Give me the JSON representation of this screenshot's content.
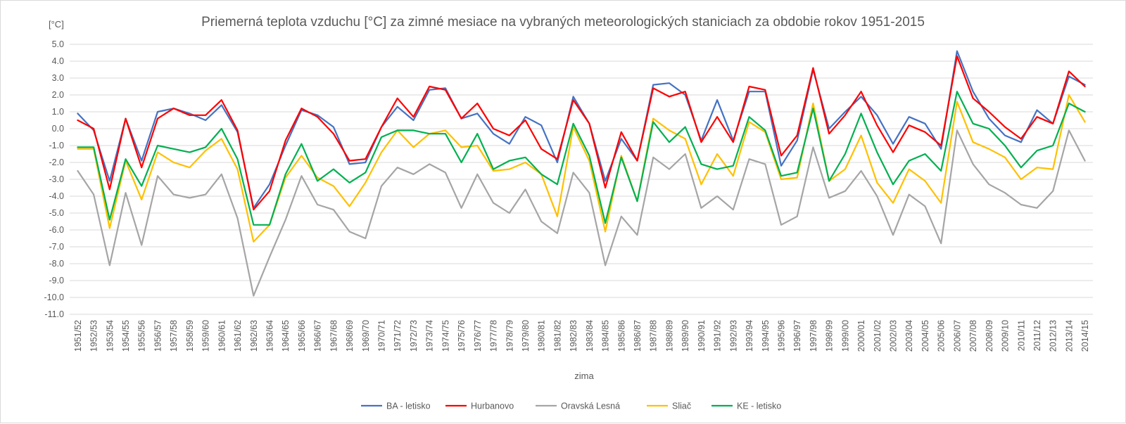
{
  "chart_data": {
    "type": "line",
    "title": "Priemerná teplota vzduchu [°C] za zimné mesiace na vybraných meteorologických staniciach za obdobie rokov 1951-2015",
    "ylabel": "[°C]",
    "xlabel": "zima",
    "ylim": [
      -11,
      5
    ],
    "ytick_step": 1,
    "ytick_labels": [
      "5.0",
      "4.0",
      "3.0",
      "2.0",
      "1.0",
      "0.0",
      "-1.0",
      "-2.0",
      "-3.0",
      "-4.0",
      "-5.0",
      "-6.0",
      "-7.0",
      "-8.0",
      "-9.0",
      "-10.0",
      "-11.0"
    ],
    "grid": true,
    "legend_position": "bottom",
    "categories": [
      "1951/52",
      "1952/53",
      "1953/54",
      "1954/55",
      "1955/56",
      "1956/57",
      "1957/58",
      "1958/59",
      "1959/60",
      "1960/61",
      "1961/62",
      "1962/63",
      "1963/64",
      "1964/65",
      "1965/66",
      "1966/67",
      "1967/68",
      "1968/69",
      "1969/70",
      "1970/71",
      "1971/72",
      "1972/73",
      "1973/74",
      "1974/75",
      "1975/76",
      "1976/77",
      "1977/78",
      "1978/79",
      "1979/80",
      "1980/81",
      "1981/82",
      "1982/83",
      "1983/84",
      "1984/85",
      "1985/86",
      "1986/87",
      "1987/88",
      "1988/89",
      "1989/90",
      "1990/91",
      "1991/92",
      "1992/93",
      "1993/94",
      "1994/95",
      "1995/96",
      "1996/97",
      "1997/98",
      "1998/99",
      "1999/00",
      "2000/01",
      "2001/02",
      "2002/03",
      "2003/04",
      "2004/05",
      "2005/06",
      "2006/07",
      "2007/08",
      "2008/09",
      "2009/10",
      "2010/11",
      "2011/12",
      "2012/13",
      "2013/14",
      "2014/15"
    ],
    "series": [
      {
        "name": "BA - letisko",
        "color": "#4472C4",
        "values": [
          0.9,
          -0.1,
          -3.1,
          0.6,
          -1.9,
          1.0,
          1.2,
          0.9,
          0.5,
          1.4,
          -0.2,
          -4.7,
          -3.3,
          -1.0,
          1.1,
          0.8,
          0.1,
          -2.1,
          -2.0,
          0.1,
          1.3,
          0.5,
          2.3,
          2.4,
          0.6,
          0.9,
          -0.3,
          -0.9,
          0.7,
          0.2,
          -2.0,
          1.9,
          0.3,
          -3.1,
          -0.6,
          -1.9,
          2.6,
          2.7,
          2.0,
          -0.7,
          1.7,
          -0.7,
          2.2,
          2.2,
          -2.2,
          -0.7,
          3.5,
          0.0,
          1.0,
          1.9,
          0.8,
          -0.9,
          0.7,
          0.3,
          -1.2,
          4.6,
          2.2,
          0.6,
          -0.4,
          -0.8,
          1.1,
          0.3,
          3.1,
          2.6
        ]
      },
      {
        "name": "Hurbanovo",
        "color": "#FF0000",
        "values": [
          0.5,
          0.0,
          -3.6,
          0.6,
          -2.3,
          0.6,
          1.2,
          0.8,
          0.8,
          1.7,
          -0.1,
          -4.8,
          -3.7,
          -0.7,
          1.2,
          0.7,
          -0.3,
          -1.9,
          -1.8,
          0.1,
          1.8,
          0.7,
          2.5,
          2.3,
          0.6,
          1.5,
          0.0,
          -0.4,
          0.5,
          -1.2,
          -1.8,
          1.7,
          0.3,
          -3.5,
          -0.2,
          -1.9,
          2.4,
          1.9,
          2.2,
          -0.8,
          0.7,
          -0.8,
          2.5,
          2.3,
          -1.6,
          -0.4,
          3.6,
          -0.3,
          0.8,
          2.2,
          0.2,
          -1.4,
          0.2,
          -0.2,
          -1.0,
          4.3,
          1.8,
          1.0,
          0.1,
          -0.6,
          0.7,
          0.3,
          3.4,
          2.5
        ]
      },
      {
        "name": "Oravská Lesná",
        "color": "#A5A5A5",
        "values": [
          -2.5,
          -3.9,
          -8.1,
          -3.8,
          -6.9,
          -2.8,
          -3.9,
          -4.1,
          -3.9,
          -2.7,
          -5.3,
          -9.9,
          -7.6,
          -5.4,
          -2.8,
          -4.5,
          -4.8,
          -6.1,
          -6.5,
          -3.4,
          -2.3,
          -2.7,
          -2.1,
          -2.6,
          -4.7,
          -2.7,
          -4.4,
          -5.0,
          -3.6,
          -5.5,
          -6.2,
          -2.6,
          -3.8,
          -8.1,
          -5.2,
          -6.3,
          -1.7,
          -2.4,
          -1.5,
          -4.7,
          -4.0,
          -4.8,
          -1.8,
          -2.1,
          -5.7,
          -5.2,
          -1.1,
          -4.1,
          -3.7,
          -2.5,
          -4.0,
          -6.3,
          -3.9,
          -4.6,
          -6.8,
          -0.1,
          -2.1,
          -3.3,
          -3.8,
          -4.5,
          -4.7,
          -3.7,
          -0.1,
          -1.9
        ]
      },
      {
        "name": "Sliač",
        "color": "#FFC000",
        "values": [
          -1.2,
          -1.2,
          -5.9,
          -1.9,
          -4.2,
          -1.4,
          -2.0,
          -2.3,
          -1.3,
          -0.6,
          -2.4,
          -6.7,
          -5.7,
          -2.9,
          -1.6,
          -2.9,
          -3.4,
          -4.6,
          -3.2,
          -1.4,
          -0.1,
          -1.1,
          -0.3,
          -0.1,
          -1.1,
          -1.0,
          -2.5,
          -2.4,
          -2.0,
          -2.7,
          -5.2,
          0.1,
          -1.9,
          -6.1,
          -1.6,
          -4.3,
          0.6,
          -0.1,
          -0.6,
          -3.3,
          -1.5,
          -2.8,
          0.4,
          -0.2,
          -3.0,
          -2.9,
          1.5,
          -3.1,
          -2.4,
          -0.4,
          -3.2,
          -4.4,
          -2.4,
          -3.1,
          -4.4,
          1.6,
          -0.8,
          -1.2,
          -1.7,
          -3.0,
          -2.3,
          -2.4,
          2.0,
          0.4
        ]
      },
      {
        "name": "KE - letisko",
        "color": "#00B050",
        "values": [
          -1.1,
          -1.1,
          -5.4,
          -1.8,
          -3.4,
          -1.0,
          -1.2,
          -1.4,
          -1.1,
          0.0,
          -1.8,
          -5.7,
          -5.7,
          -2.7,
          -0.9,
          -3.1,
          -2.4,
          -3.2,
          -2.6,
          -0.5,
          -0.1,
          -0.1,
          -0.3,
          -0.3,
          -2.0,
          -0.3,
          -2.4,
          -1.9,
          -1.7,
          -2.7,
          -3.3,
          0.3,
          -1.6,
          -5.6,
          -1.7,
          -4.3,
          0.4,
          -0.8,
          0.1,
          -2.1,
          -2.4,
          -2.2,
          0.7,
          -0.1,
          -2.8,
          -2.6,
          1.2,
          -3.1,
          -1.5,
          0.9,
          -1.4,
          -3.3,
          -1.9,
          -1.5,
          -2.5,
          2.2,
          0.3,
          0.0,
          -1.0,
          -2.3,
          -1.3,
          -1.0,
          1.5,
          1.0
        ]
      }
    ]
  }
}
